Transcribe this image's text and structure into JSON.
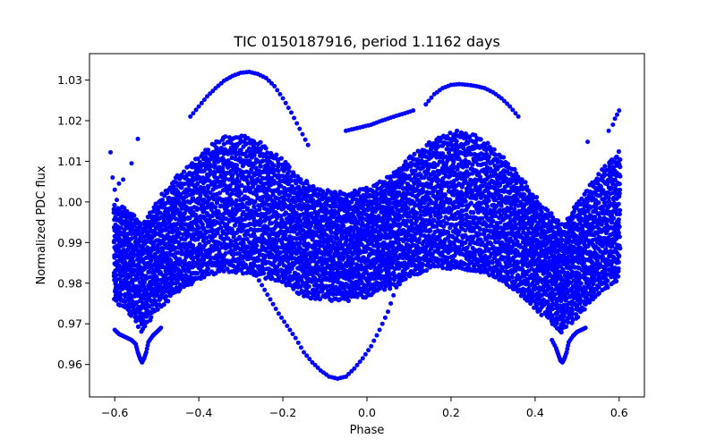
{
  "chart_data": {
    "type": "scatter",
    "title": "TIC 0150187916, period 1.1162 days",
    "xlabel": "Phase",
    "ylabel": "Normalized PDC flux",
    "xlim": [
      -0.66,
      0.66
    ],
    "ylim": [
      0.952,
      1.0365
    ],
    "xticks": [
      -0.6,
      -0.4,
      -0.2,
      0.0,
      0.2,
      0.4,
      0.6
    ],
    "xtick_labels": [
      "−0.6",
      "−0.4",
      "−0.2",
      "0.0",
      "0.2",
      "0.4",
      "0.6"
    ],
    "yticks": [
      0.96,
      0.97,
      0.98,
      0.99,
      1.0,
      1.01,
      1.02,
      1.03
    ],
    "ytick_labels": [
      "0.96",
      "0.97",
      "0.98",
      "0.99",
      "1.00",
      "1.01",
      "1.02",
      "1.03"
    ],
    "grid": false,
    "marker_color": "#0000ff",
    "series": [
      {
        "x": [
          -0.6,
          -0.575,
          -0.55,
          -0.535,
          -0.525,
          -0.5,
          -0.475,
          -0.45,
          -0.425,
          -0.4,
          -0.375,
          -0.35,
          -0.325,
          -0.3,
          -0.275,
          -0.25,
          -0.225,
          -0.2,
          -0.175,
          -0.15,
          -0.125,
          -0.1,
          -0.075,
          -0.05,
          -0.025,
          0.0,
          0.025,
          0.05,
          0.075,
          0.1,
          0.125,
          0.15,
          0.175,
          0.2,
          0.225,
          0.25,
          0.275,
          0.3,
          0.325,
          0.35,
          0.375,
          0.4,
          0.425,
          0.45,
          0.465,
          0.475,
          0.5,
          0.525,
          0.55,
          0.575,
          0.6
        ],
        "y": [
          0.9875,
          0.986,
          0.9835,
          0.981,
          0.983,
          0.9865,
          0.9895,
          0.992,
          0.994,
          0.996,
          0.998,
          0.999,
          0.9995,
          0.9995,
          0.999,
          0.998,
          0.9965,
          0.995,
          0.993,
          0.991,
          0.99,
          0.9895,
          0.989,
          0.989,
          0.9895,
          0.99,
          0.991,
          0.9925,
          0.994,
          0.996,
          0.9975,
          0.999,
          1.0,
          1.0005,
          1.0005,
          1.0,
          0.999,
          0.9975,
          0.9955,
          0.993,
          0.9905,
          0.9875,
          0.985,
          0.9825,
          0.981,
          0.9825,
          0.9855,
          0.989,
          0.992,
          0.9945,
          0.9965
        ],
        "spread": [
          0.012,
          0.0125,
          0.013,
          0.0135,
          0.0135,
          0.0135,
          0.014,
          0.0145,
          0.015,
          0.0155,
          0.016,
          0.0165,
          0.017,
          0.017,
          0.017,
          0.0165,
          0.016,
          0.0155,
          0.015,
          0.0145,
          0.014,
          0.0135,
          0.0135,
          0.0135,
          0.0135,
          0.0135,
          0.0135,
          0.014,
          0.0145,
          0.015,
          0.0155,
          0.016,
          0.0165,
          0.017,
          0.017,
          0.017,
          0.0165,
          0.016,
          0.0155,
          0.015,
          0.0145,
          0.014,
          0.0135,
          0.0135,
          0.0135,
          0.0135,
          0.014,
          0.0145,
          0.015,
          0.0155,
          0.016
        ]
      },
      {
        "x": [
          -0.31,
          -0.29,
          -0.27,
          -0.25,
          -0.23,
          -0.21,
          -0.19,
          -0.17,
          -0.15,
          -0.13,
          -0.11,
          -0.09,
          -0.07,
          -0.05,
          -0.03,
          -0.01,
          0.01,
          0.03,
          0.05,
          0.07,
          0.09,
          0.11,
          0.13,
          0.15,
          0.17,
          0.19,
          0.21,
          0.23,
          0.25,
          0.27,
          0.29
        ],
        "y": [
          0.9855,
          0.984,
          0.983,
          0.9795,
          0.976,
          0.9725,
          0.9695,
          0.9665,
          0.963,
          0.9605,
          0.9585,
          0.957,
          0.9565,
          0.957,
          0.959,
          0.9615,
          0.9645,
          0.9685,
          0.973,
          0.979,
          0.9835,
          0.9865,
          0.9885,
          0.9895,
          0.9895,
          0.989,
          0.988,
          0.987,
          0.9865,
          0.9855,
          0.985
        ]
      },
      {
        "x": [
          -0.42,
          -0.4,
          -0.38,
          -0.36,
          -0.34,
          -0.32,
          -0.3,
          -0.28,
          -0.26,
          -0.24,
          -0.22,
          -0.2,
          -0.18,
          -0.16,
          -0.14
        ],
        "y": [
          1.021,
          1.0235,
          1.026,
          1.028,
          1.0298,
          1.031,
          1.0318,
          1.032,
          1.0315,
          1.0305,
          1.0285,
          1.0255,
          1.022,
          1.018,
          1.014
        ]
      },
      {
        "x": [
          0.14,
          0.16,
          0.18,
          0.2,
          0.22,
          0.24,
          0.26,
          0.28,
          0.3,
          0.32,
          0.34,
          0.36
        ],
        "y": [
          1.024,
          1.0265,
          1.028,
          1.0288,
          1.029,
          1.0288,
          1.0285,
          1.028,
          1.027,
          1.0255,
          1.0235,
          1.021
        ]
      },
      {
        "x": [
          -0.05,
          -0.03,
          -0.01,
          0.01,
          0.03,
          0.05,
          0.07,
          0.09,
          0.11
        ],
        "y": [
          1.0175,
          1.018,
          1.0185,
          1.019,
          1.0198,
          1.0205,
          1.0212,
          1.0218,
          1.0225
        ]
      },
      {
        "x": [
          -0.42,
          -0.4,
          -0.38,
          -0.36,
          -0.34,
          -0.32,
          -0.3,
          -0.28,
          -0.26,
          -0.24,
          -0.22
        ],
        "y": [
          0.984,
          0.9845,
          0.9848,
          0.985,
          0.9852,
          0.9855,
          0.9862,
          0.987,
          0.9878,
          0.9885,
          0.9892
        ]
      },
      {
        "x": [
          0.12,
          0.14,
          0.16,
          0.18,
          0.2,
          0.22,
          0.24,
          0.26,
          0.28,
          0.3
        ],
        "y": [
          0.9885,
          0.9875,
          0.9862,
          0.9855,
          0.9845,
          0.9838,
          0.9832,
          0.983,
          0.9832,
          0.9835
        ]
      },
      {
        "x": [
          -0.6,
          -0.59,
          -0.58,
          -0.57,
          -0.56,
          -0.55,
          -0.545,
          -0.54,
          -0.535,
          -0.53,
          -0.525,
          -0.52,
          -0.51,
          -0.5,
          -0.49
        ],
        "y": [
          0.9685,
          0.9675,
          0.967,
          0.9665,
          0.966,
          0.965,
          0.963,
          0.9615,
          0.9605,
          0.9615,
          0.963,
          0.9655,
          0.967,
          0.968,
          0.969
        ]
      },
      {
        "x": [
          0.44,
          0.45,
          0.455,
          0.46,
          0.465,
          0.47,
          0.475,
          0.48,
          0.49,
          0.5,
          0.51,
          0.52
        ],
        "y": [
          0.966,
          0.964,
          0.9625,
          0.961,
          0.9605,
          0.9615,
          0.963,
          0.9655,
          0.967,
          0.968,
          0.9685,
          0.969
        ]
      },
      {
        "x": [
          -0.61,
          -0.605,
          -0.6,
          -0.595,
          -0.59,
          -0.58,
          -0.56,
          -0.545,
          0.525,
          0.575,
          0.585,
          0.59,
          0.595,
          0.6
        ],
        "y": [
          1.0122,
          1.006,
          1.003,
          1.0005,
          1.0045,
          1.0055,
          1.0095,
          1.0155,
          1.0148,
          1.0175,
          1.019,
          1.0205,
          1.0215,
          1.0225
        ]
      }
    ]
  }
}
